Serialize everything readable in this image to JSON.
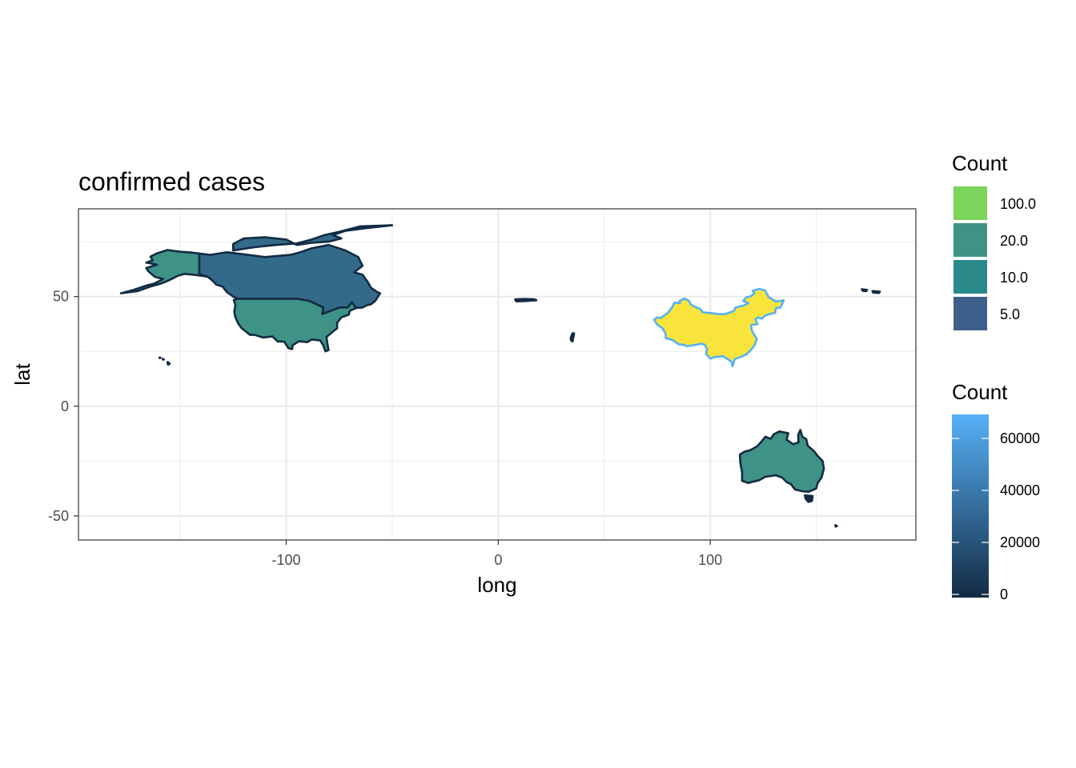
{
  "chart_data": {
    "type": "map",
    "title": "confirmed cases",
    "xlabel": "long",
    "ylabel": "lat",
    "xlim": [
      -198,
      197
    ],
    "ylim": [
      -61,
      90
    ],
    "x_ticks": [
      -100,
      0,
      100
    ],
    "x_tick_labels": [
      "-100",
      "0",
      "100"
    ],
    "y_ticks": [
      50,
      0,
      -50
    ],
    "y_tick_labels": [
      "50",
      "0",
      "-50"
    ],
    "grid": true,
    "panel_border": true,
    "legend_placement": "right",
    "fill_legend": {
      "title": "Count",
      "entries": [
        {
          "label": "100.0",
          "color": "#7cd45a"
        },
        {
          "label": "20.0",
          "color": "#3e9286"
        },
        {
          "label": "10.0",
          "color": "#2a8a8a"
        },
        {
          "label": "5.0",
          "color": "#3e5f8a"
        }
      ]
    },
    "colour_legend": {
      "title": "Count",
      "low_color": "#132b43",
      "high_color": "#56b1f7",
      "min": 0,
      "max": 68000,
      "breaks": [
        0,
        20000,
        40000,
        60000
      ],
      "break_labels": [
        "0",
        "20000",
        "40000",
        "60000"
      ]
    },
    "regions": [
      {
        "name": "Alaska",
        "fill": "#3e9286",
        "border": "#132b43"
      },
      {
        "name": "Canada",
        "fill": "#336a8a",
        "border": "#132b43"
      },
      {
        "name": "USA",
        "fill": "#3e9286",
        "border": "#132b43"
      },
      {
        "name": "China",
        "fill": "#f8e43b",
        "border": "#56b1f7"
      },
      {
        "name": "Australia",
        "fill": "#3e9286",
        "border": "#132b43"
      },
      {
        "name": "Hawaii",
        "fill": "#132b43",
        "border": "#132b43"
      },
      {
        "name": "Italy",
        "fill": "#132b43",
        "border": "#132b43"
      },
      {
        "name": "Israel",
        "fill": "#132b43",
        "border": "#132b43"
      },
      {
        "name": "Tasmania",
        "fill": "#132b43",
        "border": "#132b43"
      },
      {
        "name": "Northeast Pacific islands",
        "fill": "#132b43",
        "border": "#132b43"
      },
      {
        "name": "South Pacific island",
        "fill": "#132b43",
        "border": "#132b43"
      }
    ]
  }
}
